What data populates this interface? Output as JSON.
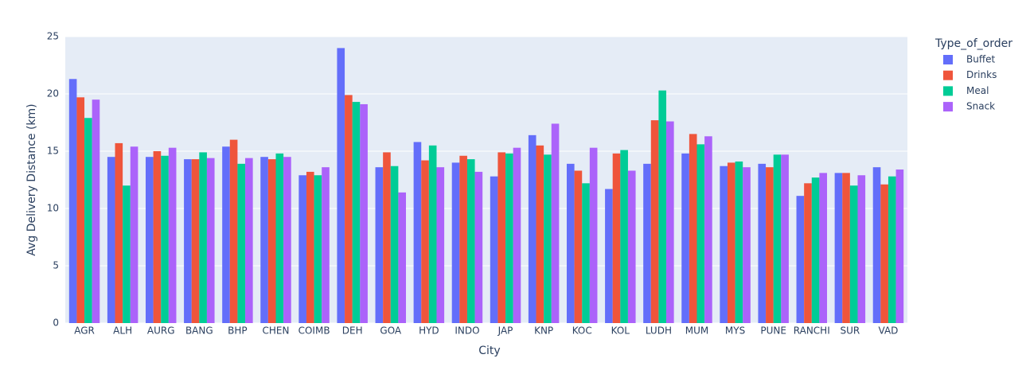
{
  "chart_data": {
    "type": "bar",
    "x_label": "City",
    "y_label": "Avg Delivery Distance (km)",
    "legend_title": "Type_of_order",
    "categories": [
      "AGR",
      "ALH",
      "AURG",
      "BANG",
      "BHP",
      "CHEN",
      "COIMB",
      "DEH",
      "GOA",
      "HYD",
      "INDO",
      "JAP",
      "KNP",
      "KOC",
      "KOL",
      "LUDH",
      "MUM",
      "MYS",
      "PUNE",
      "RANCHI",
      "SUR",
      "VAD"
    ],
    "series": [
      {
        "name": "Buffet",
        "color": "#636efa",
        "values": [
          21.3,
          14.5,
          14.5,
          14.3,
          15.4,
          14.5,
          12.9,
          24.0,
          13.6,
          15.8,
          14.0,
          12.8,
          16.4,
          13.9,
          11.7,
          13.9,
          14.8,
          13.7,
          13.9,
          11.1,
          13.1,
          13.6
        ]
      },
      {
        "name": "Drinks",
        "color": "#ef553b",
        "values": [
          19.7,
          15.7,
          15.0,
          14.3,
          16.0,
          14.3,
          13.2,
          19.9,
          14.9,
          14.2,
          14.6,
          14.9,
          15.5,
          13.3,
          14.8,
          17.7,
          16.5,
          14.0,
          13.6,
          12.2,
          13.1,
          12.1
        ]
      },
      {
        "name": "Meal",
        "color": "#00cc96",
        "values": [
          17.9,
          12.0,
          14.6,
          14.9,
          13.9,
          14.8,
          12.9,
          19.3,
          13.7,
          15.5,
          14.3,
          14.8,
          14.7,
          12.2,
          15.1,
          20.3,
          15.6,
          14.1,
          14.7,
          12.7,
          12.0,
          12.8
        ]
      },
      {
        "name": "Snack",
        "color": "#ab63fa",
        "values": [
          19.5,
          15.4,
          15.3,
          14.4,
          14.4,
          14.5,
          13.6,
          19.1,
          11.4,
          13.6,
          13.2,
          15.3,
          17.4,
          15.3,
          13.3,
          17.6,
          16.3,
          13.6,
          14.7,
          13.1,
          12.9,
          13.4
        ]
      }
    ],
    "ylim": [
      0,
      25
    ],
    "yticks": [
      0,
      5,
      10,
      15,
      20,
      25
    ],
    "grid": true,
    "legend": "right"
  }
}
